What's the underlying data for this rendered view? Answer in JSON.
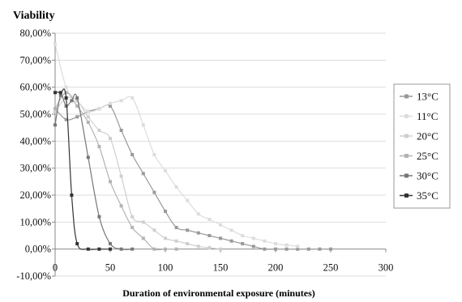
{
  "chart_data": {
    "type": "line",
    "title": "Viability",
    "xlabel": "Duration of environmental exposure (minutes)",
    "ylabel": "",
    "xlim": [
      0,
      300
    ],
    "ylim": [
      -10,
      80
    ],
    "xticks": [
      "0",
      "50",
      "100",
      "150",
      "200",
      "250",
      "300"
    ],
    "xtick_values": [
      0,
      50,
      100,
      150,
      200,
      250,
      300
    ],
    "yticks": [
      "-10,00%",
      "0,00%",
      "10,00%",
      "20,00%",
      "30,00%",
      "40,00%",
      "50,00%",
      "60,00%",
      "70,00%",
      "80,00%"
    ],
    "ytick_values": [
      -10,
      0,
      10,
      20,
      30,
      40,
      50,
      60,
      70,
      80
    ],
    "grid": "horizontal",
    "legend_position": "right",
    "series": [
      {
        "name": "13°C",
        "color": "#999999",
        "x": [
          0,
          10,
          20,
          30,
          40,
          50,
          60,
          70,
          80,
          90,
          100,
          110,
          120,
          130,
          140,
          150,
          160,
          170,
          180,
          190,
          200,
          210,
          220,
          230,
          240,
          250
        ],
        "y": [
          52,
          48,
          49,
          51,
          52,
          53,
          44,
          35,
          28,
          21,
          14,
          8,
          7,
          6,
          5,
          4,
          3,
          2,
          1,
          0,
          0,
          0,
          0,
          0,
          0,
          0
        ]
      },
      {
        "name": "11°C",
        "color": "#dddddd",
        "x": [
          0,
          10,
          20,
          30,
          40,
          50,
          60,
          70,
          80,
          90,
          100,
          110,
          120,
          130,
          140,
          150,
          160,
          170,
          180,
          190,
          200,
          210,
          220
        ],
        "y": [
          76,
          60,
          55,
          51,
          52,
          54,
          55,
          56,
          46,
          35,
          29,
          23,
          18,
          13,
          11,
          9,
          7,
          5,
          4,
          3,
          2,
          1.5,
          1
        ]
      },
      {
        "name": "20°C",
        "color": "#cfcfcf",
        "x": [
          0,
          10,
          20,
          30,
          40,
          50,
          60,
          70,
          80,
          90,
          100,
          110,
          120,
          130,
          140,
          150
        ],
        "y": [
          51,
          56,
          55,
          49,
          44,
          41,
          27,
          12,
          10,
          7,
          4,
          3,
          2,
          1,
          0.5,
          0
        ]
      },
      {
        "name": "25°C",
        "color": "#b3b3b3",
        "x": [
          0,
          10,
          20,
          30,
          40,
          50,
          60,
          70,
          80,
          90,
          100,
          110
        ],
        "y": [
          52,
          58,
          53,
          47,
          38,
          25,
          16,
          8,
          4,
          0,
          0,
          0
        ]
      },
      {
        "name": "30°C",
        "color": "#777777",
        "x": [
          0,
          5,
          10,
          15,
          20,
          30,
          40,
          50,
          60,
          70
        ],
        "y": [
          46,
          57,
          53,
          55,
          56,
          34,
          12,
          2,
          0,
          0
        ]
      },
      {
        "name": "35°C",
        "color": "#333333",
        "x": [
          0,
          5,
          10,
          15,
          20,
          30,
          40,
          50
        ],
        "y": [
          58,
          58,
          56,
          20,
          2,
          0,
          0,
          0
        ]
      }
    ]
  }
}
